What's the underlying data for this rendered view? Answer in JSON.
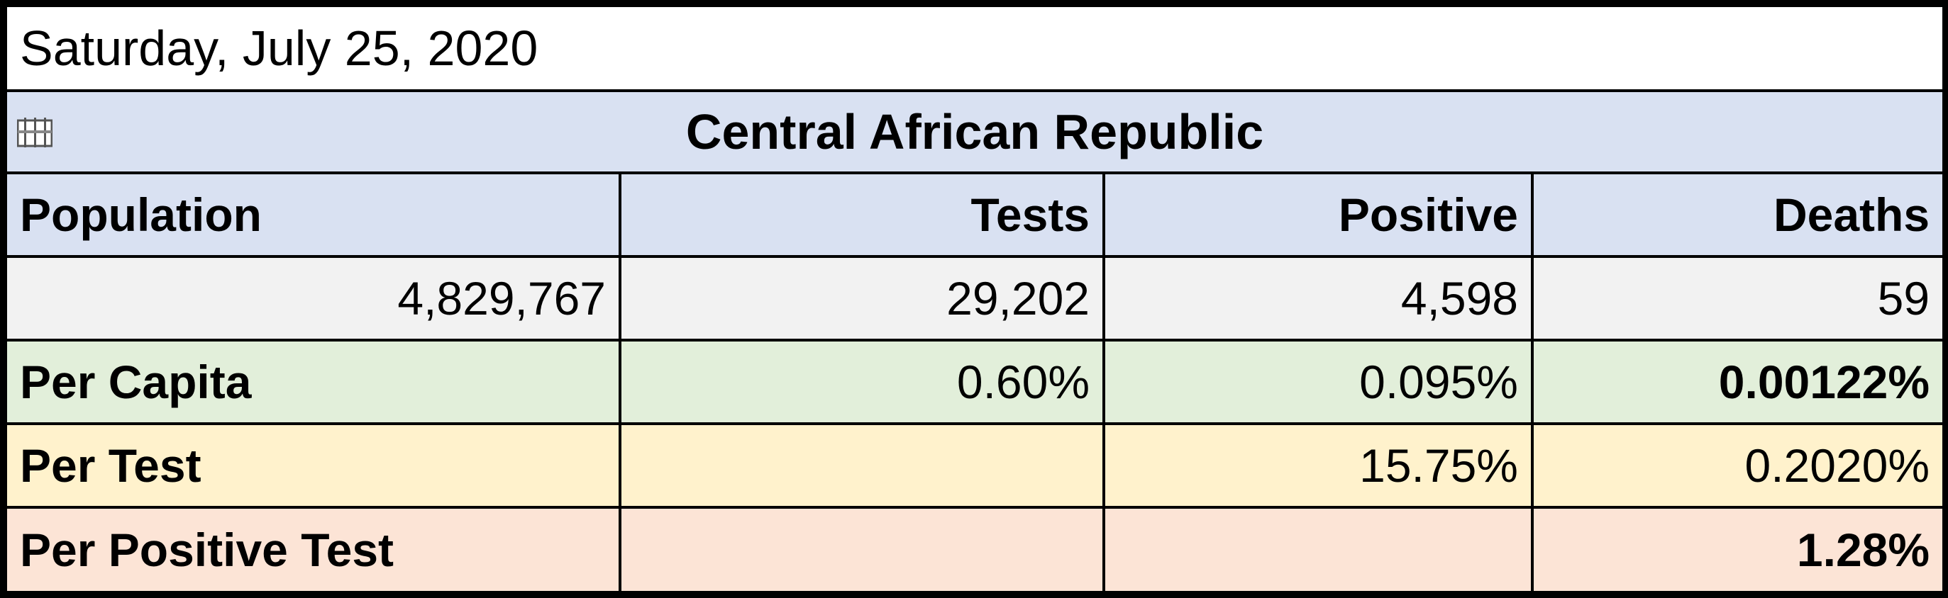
{
  "date": "Saturday, July 25, 2020",
  "country": "Central African Republic",
  "colors": {
    "header_bg": "#d9e1f2",
    "values_bg": "#f2f2f2",
    "per_capita_bg": "#e2efda",
    "per_test_bg": "#fff2cc",
    "per_positive_bg": "#fce4d6"
  },
  "flag_icon": "broken-flag-icon",
  "headers": {
    "population": "Population",
    "tests": "Tests",
    "positive": "Positive",
    "deaths": "Deaths"
  },
  "values": {
    "population": "4,829,767",
    "tests": "29,202",
    "positive": "4,598",
    "deaths": "59"
  },
  "per_capita": {
    "label": "Per Capita",
    "tests": "0.60%",
    "positive": "0.095%",
    "deaths": "0.00122%"
  },
  "per_test": {
    "label": "Per Test",
    "positive": "15.75%",
    "deaths": "0.2020%"
  },
  "per_positive_test": {
    "label": "Per Positive Test",
    "deaths": "1.28%"
  }
}
